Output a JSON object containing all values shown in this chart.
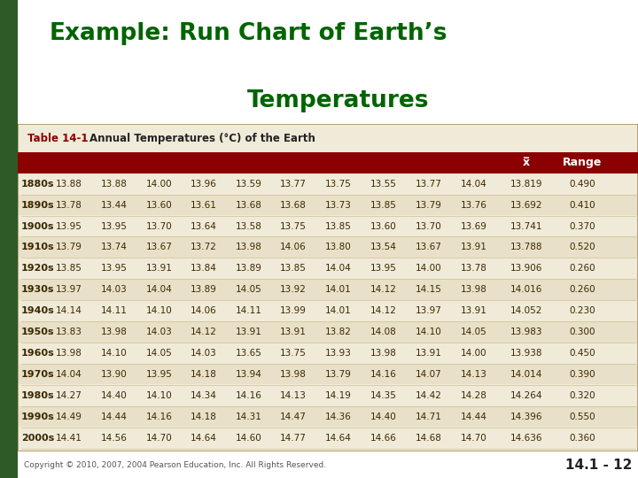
{
  "title_part1": "Example:",
  "title_part2": "Run Chart of Earth’s",
  "title_part3": "Temperatures",
  "title_color": "#006400",
  "table_title": "Table 14-1",
  "table_subtitle": "Annual Temperatures (°C) of the Earth",
  "xbar_label": "x̅",
  "range_label": "Range",
  "decades": [
    "1880s",
    "1890s",
    "1900s",
    "1910s",
    "1920s",
    "1930s",
    "1940s",
    "1950s",
    "1960s",
    "1970s",
    "1980s",
    "1990s",
    "2000s"
  ],
  "data": [
    [
      13.88,
      13.88,
      14.0,
      13.96,
      13.59,
      13.77,
      13.75,
      13.55,
      13.77,
      14.04,
      13.819,
      0.49
    ],
    [
      13.78,
      13.44,
      13.6,
      13.61,
      13.68,
      13.68,
      13.73,
      13.85,
      13.79,
      13.76,
      13.692,
      0.41
    ],
    [
      13.95,
      13.95,
      13.7,
      13.64,
      13.58,
      13.75,
      13.85,
      13.6,
      13.7,
      13.69,
      13.741,
      0.37
    ],
    [
      13.79,
      13.74,
      13.67,
      13.72,
      13.98,
      14.06,
      13.8,
      13.54,
      13.67,
      13.91,
      13.788,
      0.52
    ],
    [
      13.85,
      13.95,
      13.91,
      13.84,
      13.89,
      13.85,
      14.04,
      13.95,
      14.0,
      13.78,
      13.906,
      0.26
    ],
    [
      13.97,
      14.03,
      14.04,
      13.89,
      14.05,
      13.92,
      14.01,
      14.12,
      14.15,
      13.98,
      14.016,
      0.26
    ],
    [
      14.14,
      14.11,
      14.1,
      14.06,
      14.11,
      13.99,
      14.01,
      14.12,
      13.97,
      13.91,
      14.052,
      0.23
    ],
    [
      13.83,
      13.98,
      14.03,
      14.12,
      13.91,
      13.91,
      13.82,
      14.08,
      14.1,
      14.05,
      13.983,
      0.3
    ],
    [
      13.98,
      14.1,
      14.05,
      14.03,
      13.65,
      13.75,
      13.93,
      13.98,
      13.91,
      14.0,
      13.938,
      0.45
    ],
    [
      14.04,
      13.9,
      13.95,
      14.18,
      13.94,
      13.98,
      13.79,
      14.16,
      14.07,
      14.13,
      14.014,
      0.39
    ],
    [
      14.27,
      14.4,
      14.1,
      14.34,
      14.16,
      14.13,
      14.19,
      14.35,
      14.42,
      14.28,
      14.264,
      0.32
    ],
    [
      14.49,
      14.44,
      14.16,
      14.18,
      14.31,
      14.47,
      14.36,
      14.4,
      14.71,
      14.44,
      14.396,
      0.55
    ],
    [
      14.41,
      14.56,
      14.7,
      14.64,
      14.6,
      14.77,
      14.64,
      14.66,
      14.68,
      14.7,
      14.636,
      0.36
    ]
  ],
  "bg_color": "#f0ead8",
  "table_outer_bg": "#e8e0c8",
  "header_bg": "#8b0000",
  "header_text_color": "#ffffff",
  "table_text_color": "#3a2800",
  "table_title_color": "#8b0000",
  "left_bar_color": "#2d5a27",
  "row_sep_color": "#c8b878",
  "alt_row_color": "#e8e0c8",
  "copyright_text": "Copyright © 2010, 2007, 2004 Pearson Education, Inc. All Rights Reserved.",
  "page_ref": "14.1 - 12",
  "slide_bg": "#ffffff"
}
